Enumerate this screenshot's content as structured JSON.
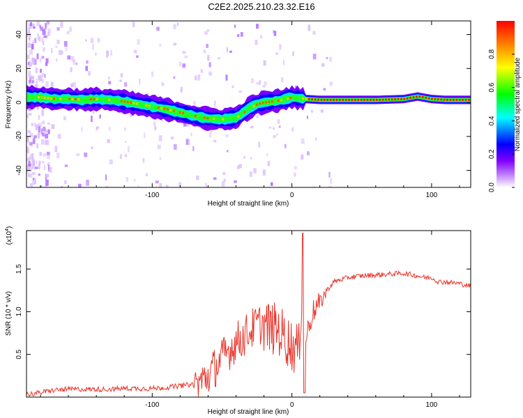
{
  "figure_title": "C2E2.2025.210.23.32.E16",
  "chart_data": [
    {
      "type": "heatmap",
      "xlabel": "Height of straight line (km)",
      "ylabel": "Frequency (Hz)",
      "xlim": [
        -190,
        128
      ],
      "ylim": [
        -50,
        48
      ],
      "x_ticks": [
        -100,
        0,
        100
      ],
      "x_tick_labels": [
        "-100",
        "0",
        "100"
      ],
      "y_ticks": [
        40,
        20,
        0,
        -20,
        -40
      ],
      "y_tick_labels": [
        "40",
        "20",
        "0",
        "-20",
        "-40"
      ],
      "grid": false,
      "colorbar": {
        "label": "Normalized spectral amplitude",
        "range": [
          0,
          1
        ],
        "ticks": [
          0.0,
          0.2,
          0.4,
          0.6,
          0.8
        ],
        "tick_labels": [
          "0.0",
          "0.2",
          "0.4",
          "0.6",
          "0.8"
        ],
        "colormap": [
          "#ffffff",
          "#cc99ff",
          "#8000ff",
          "#0000ff",
          "#00ffff",
          "#00ff00",
          "#ffff00",
          "#ff8000",
          "#ff0000"
        ]
      },
      "ridge": {
        "x": [
          -190,
          -180,
          -170,
          -160,
          -150,
          -140,
          -130,
          -120,
          -110,
          -100,
          -90,
          -80,
          -70,
          -60,
          -50,
          -40,
          -35,
          -30,
          -25,
          -20,
          -10,
          -5,
          0,
          5,
          10,
          20,
          40,
          60,
          80,
          90,
          100,
          110,
          120,
          128
        ],
        "y": [
          3,
          3,
          2,
          2,
          1.5,
          2,
          1.5,
          0.5,
          -1,
          -2.5,
          -4,
          -6,
          -8,
          -9.5,
          -10,
          -9,
          -6,
          -3,
          -1,
          0,
          1,
          2,
          3,
          2.5,
          2,
          1.5,
          1.5,
          1.5,
          2,
          3.5,
          2,
          1.5,
          1.5,
          1.5
        ]
      }
    },
    {
      "type": "line",
      "xlabel": "Height of straight line (km)",
      "ylabel": "SNR (10 * v/v)",
      "y_multiplier": "(x10",
      "y_multiplier_exp": "4",
      "y_multiplier_close": ")",
      "xlim": [
        -190,
        128
      ],
      "ylim": [
        0,
        1.95
      ],
      "x_ticks": [
        -100,
        0,
        100
      ],
      "x_tick_labels": [
        "-100",
        "0",
        "100"
      ],
      "y_ticks": [
        0.5,
        1.0,
        1.5
      ],
      "y_tick_labels": [
        "0.5",
        "1.0",
        "1.5"
      ],
      "grid": false,
      "series": [
        {
          "color": "#e8352b",
          "x": [
            -190,
            -180,
            -170,
            -160,
            -150,
            -140,
            -130,
            -120,
            -110,
            -100,
            -90,
            -80,
            -70,
            -65,
            -60,
            -55,
            -50,
            -45,
            -40,
            -35,
            -30,
            -25,
            -20,
            -15,
            -10,
            -5,
            0,
            5,
            8,
            10,
            15,
            20,
            25,
            30,
            40,
            50,
            60,
            70,
            80,
            90,
            95,
            100,
            105,
            110,
            120,
            128
          ],
          "y": [
            0.02,
            0.04,
            0.07,
            0.08,
            0.08,
            0.08,
            0.08,
            0.09,
            0.09,
            0.09,
            0.1,
            0.12,
            0.14,
            0.18,
            0.25,
            0.35,
            0.45,
            0.55,
            0.65,
            0.7,
            0.78,
            0.85,
            0.85,
            0.8,
            0.8,
            0.7,
            0.6,
            0.55,
            1.5,
            0.7,
            1.0,
            1.1,
            1.25,
            1.35,
            1.4,
            1.42,
            1.43,
            1.44,
            1.45,
            1.42,
            1.4,
            1.4,
            1.35,
            1.35,
            1.33,
            1.3
          ]
        }
      ]
    }
  ]
}
